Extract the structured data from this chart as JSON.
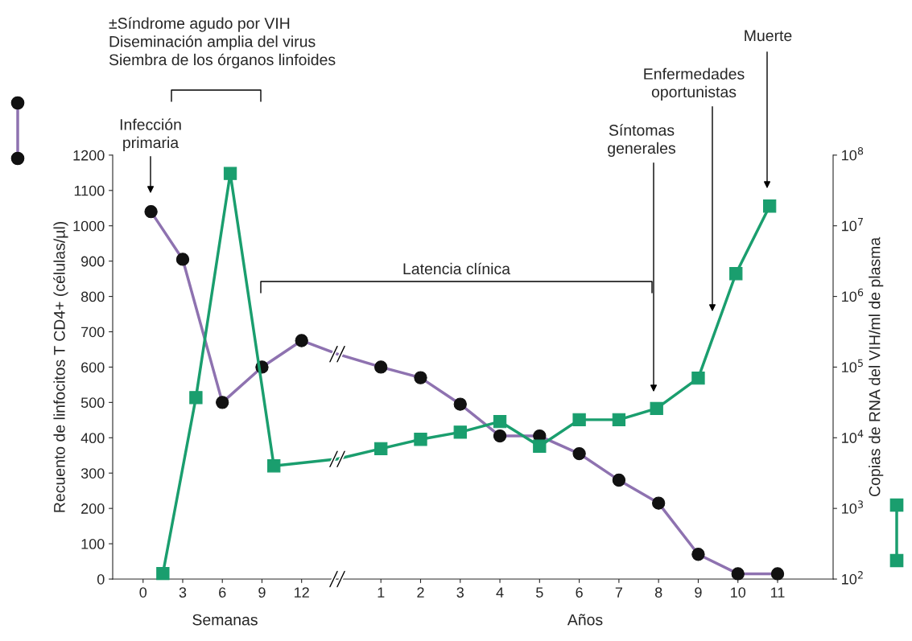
{
  "chart_data": [
    {
      "type": "line",
      "xlabel": "Semanas",
      "ylabel": "Recuento de linfocitos T CD4+ (células/µl)",
      "xlim": [
        -2.3,
        14.7
      ],
      "xticks": [
        0,
        3,
        6,
        9,
        12
      ],
      "ylim": [
        0,
        1200
      ],
      "yticks": [
        0,
        100,
        200,
        300,
        400,
        500,
        600,
        700,
        800,
        900,
        1000,
        1100,
        1200
      ],
      "y2lim": [
        100,
        100000000
      ],
      "log": "y2",
      "grid": false,
      "legend": false,
      "series": [
        {
          "color": "#8e72b0",
          "marker": "circle",
          "x": [
            0.6,
            3,
            6,
            9,
            12
          ],
          "values": [
            1040,
            905,
            500,
            600,
            675
          ]
        },
        {
          "color": "#1a9e6e",
          "marker": "square",
          "axis": "y2",
          "x": [
            1.5,
            4,
            6.6,
            9.9
          ],
          "values": [
            120,
            37000,
            55000000,
            4000
          ]
        },
        {
          "color": "#8e72b0",
          "marker": "none",
          "x": [
            12,
            14.7
          ],
          "values": [
            675,
            637
          ]
        },
        {
          "color": "#1a9e6e",
          "marker": "none",
          "axis": "y2",
          "x": [
            9.9,
            14.7
          ],
          "values": [
            4000,
            5000
          ]
        }
      ],
      "annotations": [
        "±Síndrome agudo por VIH\nDiseminación amplia del virus\nSiembra de los órganos linfoides",
        "Infección\nprimaria"
      ]
    },
    {
      "type": "line",
      "xlabel": "Años",
      "y2label": "Copias de RNA del VIH/ml de plasma",
      "xlim": [
        -0.1,
        12.4
      ],
      "xticks": [
        1,
        2,
        3,
        4,
        5,
        6,
        7,
        8,
        9,
        10,
        11
      ],
      "ylim": [
        0,
        1200
      ],
      "y2lim": [
        100,
        100000000
      ],
      "y2ticks": [
        {
          "value": 100,
          "label": "10$^{2}$"
        },
        {
          "value": 1000,
          "label": "10$^{3}$"
        },
        {
          "value": 10000,
          "label": "10$^{4}$"
        },
        {
          "value": 100000,
          "label": "10$^{5}$"
        },
        {
          "value": 1000000,
          "label": "10$^{6}$"
        },
        {
          "value": 10000000,
          "label": "10$^{7}$"
        },
        {
          "value": 100000000,
          "label": "10$^{8}$"
        }
      ],
      "log": "y2",
      "grid": false,
      "legend": false,
      "series": [
        {
          "color": "#8e72b0",
          "marker": "circle",
          "x": [
            1,
            2,
            3,
            4,
            5,
            6,
            7,
            8,
            9,
            10,
            11
          ],
          "values": [
            600,
            570,
            495,
            405,
            405,
            355,
            280,
            215,
            70,
            15,
            15
          ]
        },
        {
          "color": "#1a9e6e",
          "marker": "square",
          "axis": "y2",
          "x": [
            1,
            2,
            3,
            4,
            5,
            6,
            7,
            7.95,
            9,
            9.95,
            10.8
          ],
          "values": [
            7000,
            9500,
            12000,
            17000,
            7600,
            18000,
            18000,
            26000,
            70000,
            2100000,
            19000000
          ]
        },
        {
          "color": "#8e72b0",
          "marker": "none",
          "x": [
            -0.1,
            1
          ],
          "values": [
            637,
            600
          ]
        },
        {
          "color": "#1a9e6e",
          "marker": "none",
          "axis": "y2",
          "x": [
            -0.1,
            1
          ],
          "values": [
            5000,
            7000
          ]
        }
      ],
      "annotations": [
        "Latencia clínica",
        "Síntomas\ngenerales",
        "Enfermedades\noportunistas",
        "Muerte"
      ]
    }
  ]
}
